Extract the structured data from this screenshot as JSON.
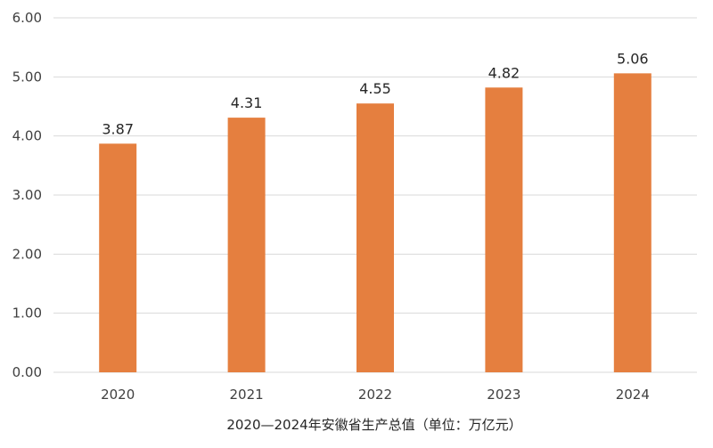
{
  "chart_data": {
    "type": "bar",
    "categories": [
      "2020",
      "2021",
      "2022",
      "2023",
      "2024"
    ],
    "values": [
      3.87,
      4.31,
      4.55,
      4.82,
      5.06
    ],
    "data_labels": [
      "3.87",
      "4.31",
      "4.55",
      "4.82",
      "5.06"
    ],
    "y_ticks": [
      "0.00",
      "1.00",
      "2.00",
      "3.00",
      "4.00",
      "5.00",
      "6.00"
    ],
    "ylim": [
      0,
      6
    ],
    "xlabel": "2020—2024年安徽省生产总值（单位：万亿元）",
    "ylabel": "",
    "title": "",
    "grid": true,
    "legend": "none",
    "bar_color": "#e57f3f",
    "grid_color": "#d9d9d9"
  }
}
